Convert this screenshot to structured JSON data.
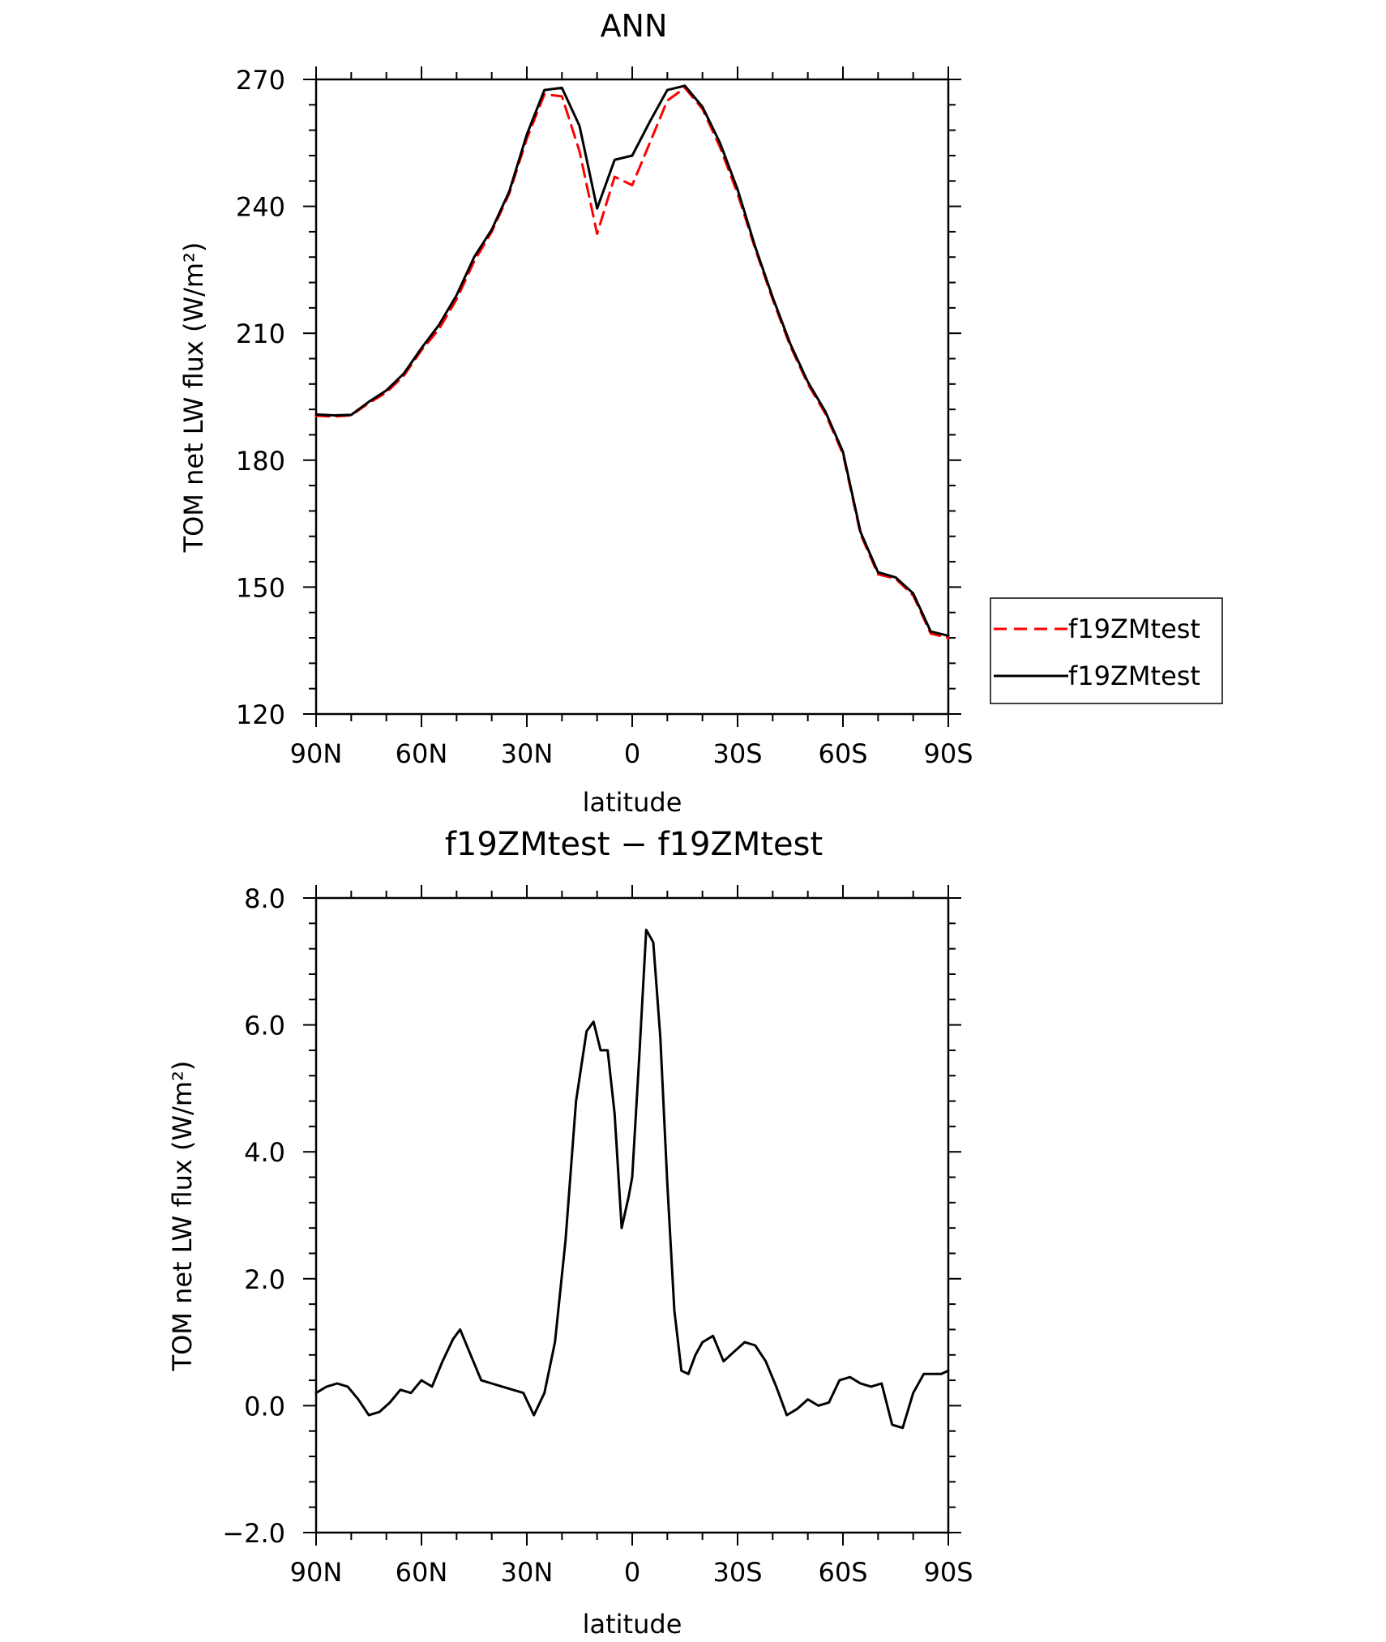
{
  "chart_data": [
    {
      "type": "line",
      "title": "ANN",
      "xlabel": "latitude",
      "ylabel": "TOM net LW flux (W/m²)",
      "x_ticks": [
        "90N",
        "60N",
        "30N",
        "0",
        "30S",
        "60S",
        "90S"
      ],
      "y_ticks": [
        "120",
        "150",
        "180",
        "210",
        "240",
        "270"
      ],
      "xlim": [
        90,
        -90
      ],
      "ylim": [
        120,
        270
      ],
      "grid": false,
      "legend_position": "right",
      "series": [
        {
          "name": "f19ZMtest",
          "color": "#ff0000",
          "style": "dashed",
          "x": [
            90,
            85,
            80,
            75,
            70,
            65,
            60,
            55,
            50,
            45,
            40,
            35,
            30,
            25,
            20,
            15,
            10,
            5,
            0,
            -5,
            -10,
            -15,
            -20,
            -25,
            -30,
            -35,
            -40,
            -45,
            -50,
            -55,
            -60,
            -65,
            -70,
            -75,
            -80,
            -85,
            -90
          ],
          "values": [
            190.5,
            190.3,
            190.6,
            193.5,
            196,
            200,
            206,
            211,
            218,
            227,
            234,
            243,
            256,
            266.5,
            266,
            253,
            233.5,
            247,
            245,
            255,
            265,
            268,
            263,
            254,
            243,
            230,
            218,
            207,
            198,
            191,
            181.5,
            162.5,
            153,
            152,
            148,
            139,
            138
          ]
        },
        {
          "name": "f19ZMtest",
          "color": "#000000",
          "style": "solid",
          "x": [
            90,
            85,
            80,
            75,
            70,
            65,
            60,
            55,
            50,
            45,
            40,
            35,
            30,
            25,
            20,
            15,
            10,
            5,
            0,
            -5,
            -10,
            -15,
            -20,
            -25,
            -30,
            -35,
            -40,
            -45,
            -50,
            -55,
            -60,
            -65,
            -70,
            -75,
            -80,
            -85,
            -90
          ],
          "values": [
            190.8,
            190.6,
            190.7,
            193.8,
            196.5,
            200.5,
            206.5,
            212,
            219,
            228,
            234.5,
            243.5,
            257,
            267.5,
            268,
            259,
            239.5,
            251,
            252,
            260,
            267.5,
            268.5,
            263.5,
            255,
            244,
            230.5,
            218.5,
            207.5,
            198.5,
            191.5,
            182,
            163,
            153.5,
            152.3,
            148.5,
            139.5,
            138.5
          ]
        }
      ]
    },
    {
      "type": "line",
      "title": "f19ZMtest − f19ZMtest",
      "xlabel": "latitude",
      "ylabel": "TOM net LW flux (W/m²)",
      "x_ticks": [
        "90N",
        "60N",
        "30N",
        "0",
        "30S",
        "60S",
        "90S"
      ],
      "y_ticks": [
        "−2.0",
        "0.0",
        "2.0",
        "4.0",
        "6.0",
        "8.0"
      ],
      "xlim": [
        90,
        -90
      ],
      "ylim": [
        -2,
        8
      ],
      "grid": false,
      "series": [
        {
          "color": "#000000",
          "style": "solid",
          "x": [
            90,
            87,
            84,
            81,
            78,
            75,
            72,
            69,
            66,
            63,
            60,
            57,
            54,
            51,
            49,
            46,
            43,
            40,
            37,
            34,
            31,
            28,
            25,
            22,
            19,
            16,
            13,
            11,
            9,
            7,
            5,
            3,
            1,
            0,
            -2,
            -4,
            -6,
            -8,
            -10,
            -12,
            -14,
            -16,
            -18,
            -20,
            -23,
            -26,
            -29,
            -32,
            -35,
            -38,
            -41,
            -44,
            -47,
            -50,
            -53,
            -56,
            -59,
            -62,
            -65,
            -68,
            -71,
            -74,
            -77,
            -80,
            -83,
            -86,
            -88,
            -90
          ],
          "values": [
            0.2,
            0.3,
            0.35,
            0.3,
            0.1,
            -0.15,
            -0.1,
            0.05,
            0.25,
            0.2,
            0.4,
            0.3,
            0.7,
            1.05,
            1.2,
            0.8,
            0.4,
            0.35,
            0.3,
            0.25,
            0.2,
            -0.15,
            0.2,
            1.0,
            2.6,
            4.8,
            5.9,
            6.05,
            5.6,
            5.6,
            4.6,
            2.8,
            3.3,
            3.6,
            5.5,
            7.5,
            7.3,
            5.8,
            3.5,
            1.5,
            0.55,
            0.5,
            0.8,
            1.0,
            1.1,
            0.7,
            0.85,
            1.0,
            0.95,
            0.7,
            0.3,
            -0.15,
            -0.05,
            0.1,
            0.0,
            0.05,
            0.4,
            0.45,
            0.35,
            0.3,
            0.35,
            -0.3,
            -0.35,
            0.2,
            0.5,
            0.5,
            0.5,
            0.55
          ]
        }
      ]
    }
  ]
}
